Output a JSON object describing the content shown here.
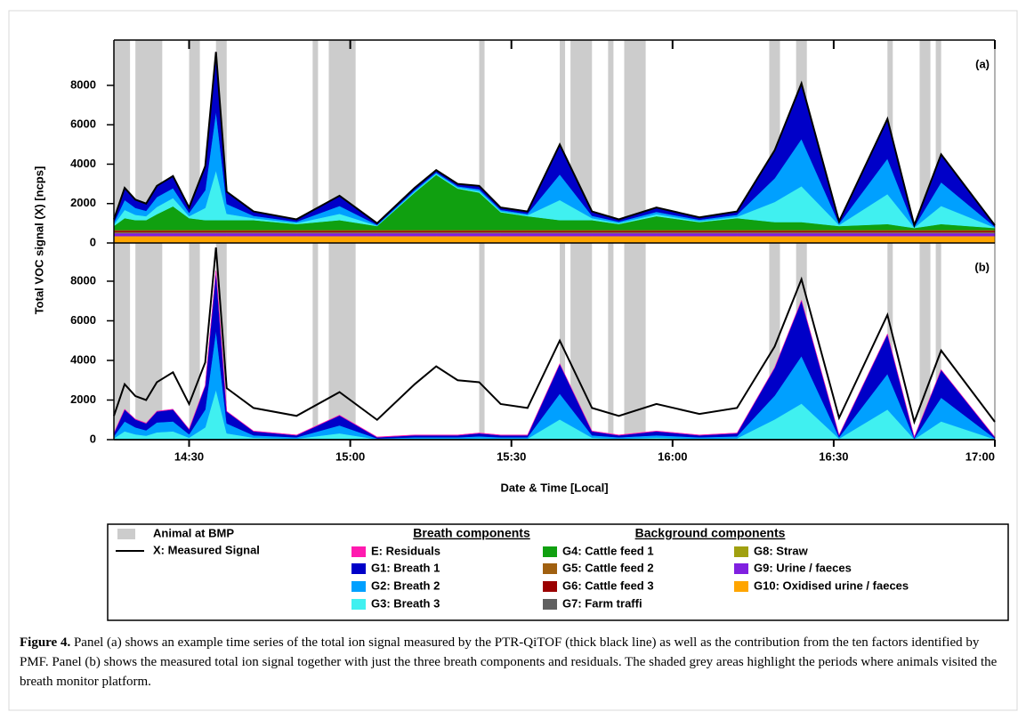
{
  "chart_data": [
    {
      "type": "stacked-area",
      "panel_label": "(a)",
      "ylabel": "Total VOC signal (X) [ncps]",
      "x": [
        "14:16",
        "14:18",
        "14:20",
        "14:22",
        "14:24",
        "14:27",
        "14:30",
        "14:33",
        "14:35",
        "14:37",
        "14:42",
        "14:50",
        "14:58",
        "15:05",
        "15:12",
        "15:16",
        "15:20",
        "15:24",
        "15:28",
        "15:33",
        "15:39",
        "15:45",
        "15:50",
        "15:57",
        "16:05",
        "16:12",
        "16:19",
        "16:24",
        "16:31",
        "16:40",
        "16:45",
        "16:50",
        "17:00"
      ],
      "xlim": [
        "14:16",
        "17:00"
      ],
      "xticks": [
        "14:30",
        "15:00",
        "15:30",
        "16:00",
        "16:30",
        "17:00"
      ],
      "ylim": [
        0,
        10300
      ],
      "yticks": [
        0,
        2000,
        4000,
        6000,
        8000
      ],
      "series": [
        {
          "name": "E: Residuals",
          "color": "#ff1aaf",
          "values": [
            20,
            20,
            20,
            20,
            20,
            20,
            20,
            20,
            20,
            20,
            20,
            20,
            20,
            20,
            20,
            20,
            20,
            20,
            20,
            20,
            20,
            20,
            20,
            20,
            20,
            20,
            20,
            20,
            20,
            20,
            20,
            20,
            20
          ]
        },
        {
          "name": "G1: Breath 1",
          "color": "#0000c8",
          "values": [
            150,
            600,
            400,
            350,
            550,
            600,
            250,
            1200,
            3000,
            600,
            200,
            100,
            500,
            60,
            100,
            100,
            100,
            150,
            100,
            100,
            1500,
            200,
            100,
            200,
            100,
            150,
            1400,
            2800,
            100,
            2000,
            60,
            1400,
            60
          ]
        },
        {
          "name": "G2: Breath 2",
          "color": "#00a0ff",
          "values": [
            100,
            500,
            350,
            270,
            500,
            500,
            170,
            900,
            3000,
            500,
            120,
            70,
            400,
            40,
            70,
            70,
            70,
            100,
            70,
            70,
            1300,
            120,
            70,
            120,
            70,
            100,
            1200,
            2400,
            70,
            1800,
            40,
            1200,
            40
          ]
        },
        {
          "name": "G3: Breath 3",
          "color": "#40f0f0",
          "values": [
            70,
            420,
            270,
            200,
            370,
            420,
            100,
            620,
            2520,
            320,
            100,
            50,
            320,
            20,
            50,
            50,
            50,
            70,
            50,
            50,
            1020,
            100,
            50,
            100,
            50,
            70,
            1020,
            1820,
            50,
            1520,
            20,
            920,
            20
          ]
        },
        {
          "name": "G4: Cattle feed 1",
          "color": "#10a010",
          "values": [
            200,
            600,
            500,
            500,
            800,
            1200,
            600,
            500,
            500,
            500,
            500,
            300,
            500,
            200,
            1900,
            2800,
            2100,
            1900,
            900,
            700,
            500,
            500,
            300,
            700,
            400,
            600,
            400,
            400,
            200,
            300,
            100,
            300,
            100
          ]
        },
        {
          "name": "G5: Cattle feed 2",
          "color": "#a06010",
          "values": [
            50,
            50,
            50,
            50,
            50,
            50,
            50,
            50,
            50,
            50,
            50,
            50,
            50,
            50,
            50,
            50,
            50,
            50,
            50,
            50,
            50,
            50,
            50,
            50,
            50,
            50,
            50,
            50,
            50,
            50,
            50,
            50,
            50
          ]
        },
        {
          "name": "G6: Cattle feed 3",
          "color": "#9b0000",
          "values": [
            50,
            50,
            50,
            50,
            50,
            50,
            50,
            50,
            50,
            50,
            50,
            50,
            50,
            50,
            50,
            50,
            50,
            50,
            50,
            50,
            50,
            50,
            50,
            50,
            50,
            50,
            50,
            50,
            50,
            50,
            50,
            50,
            50
          ]
        },
        {
          "name": "G7: Farm traffi",
          "color": "#606060",
          "values": [
            30,
            30,
            30,
            30,
            30,
            30,
            30,
            30,
            30,
            30,
            30,
            30,
            30,
            30,
            30,
            30,
            30,
            30,
            30,
            30,
            30,
            30,
            30,
            30,
            30,
            30,
            30,
            30,
            30,
            30,
            30,
            30,
            30
          ]
        },
        {
          "name": "G8: Straw",
          "color": "#a0a010",
          "values": [
            30,
            30,
            30,
            30,
            30,
            30,
            30,
            30,
            30,
            30,
            30,
            30,
            30,
            30,
            30,
            30,
            30,
            30,
            30,
            30,
            30,
            30,
            30,
            30,
            30,
            30,
            30,
            30,
            30,
            30,
            30,
            30,
            30
          ]
        },
        {
          "name": "G9: Urine / faeces",
          "color": "#8020e0",
          "values": [
            150,
            150,
            150,
            150,
            150,
            150,
            150,
            150,
            150,
            150,
            150,
            150,
            150,
            150,
            150,
            150,
            150,
            150,
            150,
            150,
            150,
            150,
            150,
            150,
            150,
            150,
            150,
            150,
            150,
            150,
            150,
            150,
            150
          ]
        },
        {
          "name": "G10: Oxidised urine / faeces",
          "color": "#ffa500",
          "values": [
            350,
            350,
            350,
            350,
            350,
            350,
            350,
            350,
            350,
            350,
            350,
            350,
            350,
            350,
            350,
            350,
            350,
            350,
            350,
            350,
            350,
            350,
            350,
            350,
            350,
            350,
            350,
            350,
            350,
            350,
            350,
            350,
            350
          ]
        },
        {
          "name": "X: Measured Signal",
          "color": "#000000",
          "type": "line",
          "values": [
            1200,
            2800,
            2200,
            2000,
            2900,
            3400,
            1800,
            3900,
            9700,
            2600,
            1600,
            1200,
            2400,
            1000,
            2800,
            3700,
            3000,
            2900,
            1800,
            1600,
            5000,
            1600,
            1200,
            1800,
            1300,
            1600,
            4700,
            8100,
            1100,
            6300,
            900,
            4500,
            900
          ]
        }
      ]
    },
    {
      "type": "stacked-area",
      "panel_label": "(b)",
      "xlabel": "Date & Time [Local]",
      "x": [
        "14:16",
        "14:18",
        "14:20",
        "14:22",
        "14:24",
        "14:27",
        "14:30",
        "14:33",
        "14:35",
        "14:37",
        "14:42",
        "14:50",
        "14:58",
        "15:05",
        "15:12",
        "15:16",
        "15:20",
        "15:24",
        "15:28",
        "15:33",
        "15:39",
        "15:45",
        "15:50",
        "15:57",
        "16:05",
        "16:12",
        "16:19",
        "16:24",
        "16:31",
        "16:40",
        "16:45",
        "16:50",
        "17:00"
      ],
      "xlim": [
        "14:16",
        "17:00"
      ],
      "xticks": [
        "14:30",
        "15:00",
        "15:30",
        "16:00",
        "16:30",
        "17:00"
      ],
      "ylim": [
        0,
        9930
      ],
      "yticks": [
        0,
        2000,
        4000,
        6000,
        8000
      ],
      "series": [
        {
          "name": "E: Residuals",
          "color": "#ff1aaf",
          "values": [
            20,
            20,
            20,
            20,
            20,
            20,
            20,
            20,
            20,
            20,
            20,
            20,
            20,
            20,
            20,
            20,
            20,
            20,
            20,
            20,
            20,
            20,
            20,
            20,
            20,
            20,
            20,
            20,
            20,
            20,
            20,
            20,
            20
          ]
        },
        {
          "name": "G1: Breath 1",
          "color": "#0000c8",
          "values": [
            150,
            600,
            400,
            350,
            550,
            600,
            250,
            1200,
            3000,
            600,
            200,
            100,
            500,
            60,
            100,
            100,
            100,
            150,
            100,
            100,
            1500,
            200,
            100,
            200,
            100,
            150,
            1400,
            2800,
            100,
            2000,
            60,
            1400,
            60
          ]
        },
        {
          "name": "G2: Breath 2",
          "color": "#00a0ff",
          "values": [
            100,
            500,
            350,
            270,
            500,
            500,
            170,
            900,
            3000,
            500,
            120,
            70,
            400,
            40,
            70,
            70,
            70,
            100,
            70,
            70,
            1300,
            120,
            70,
            120,
            70,
            100,
            1200,
            2400,
            70,
            1800,
            40,
            1200,
            40
          ]
        },
        {
          "name": "G3: Breath 3",
          "color": "#40f0f0",
          "values": [
            70,
            420,
            270,
            200,
            370,
            420,
            100,
            620,
            2520,
            320,
            100,
            50,
            320,
            20,
            50,
            50,
            50,
            70,
            50,
            50,
            1020,
            100,
            50,
            100,
            50,
            70,
            1020,
            1820,
            50,
            1520,
            20,
            920,
            20
          ]
        },
        {
          "name": "X: Measured Signal",
          "color": "#000000",
          "type": "line",
          "values": [
            1200,
            2800,
            2200,
            2000,
            2900,
            3400,
            1800,
            3900,
            9700,
            2600,
            1600,
            1200,
            2400,
            1000,
            2800,
            3700,
            3000,
            2900,
            1800,
            1600,
            5000,
            1600,
            1200,
            1800,
            1300,
            1600,
            4700,
            8100,
            1100,
            6300,
            900,
            4500,
            900
          ]
        }
      ]
    }
  ],
  "shading": {
    "label": "Animal at BMP",
    "color": "#cccccc",
    "periods": [
      [
        "14:16",
        "14:19"
      ],
      [
        "14:20",
        "14:25"
      ],
      [
        "14:30",
        "14:32"
      ],
      [
        "14:35",
        "14:37"
      ],
      [
        "14:53",
        "14:54"
      ],
      [
        "14:56",
        "15:01"
      ],
      [
        "15:24",
        "15:25"
      ],
      [
        "15:39",
        "15:40"
      ],
      [
        "15:41",
        "15:45"
      ],
      [
        "15:48",
        "15:49"
      ],
      [
        "15:51",
        "15:55"
      ],
      [
        "16:18",
        "16:20"
      ],
      [
        "16:23",
        "16:25"
      ],
      [
        "16:40",
        "16:41"
      ],
      [
        "16:46",
        "16:48"
      ],
      [
        "16:49",
        "16:50"
      ]
    ]
  },
  "legend": {
    "breath_title": "Breath components",
    "background_title": "Background components"
  },
  "caption": {
    "label": "Figure 4.",
    "text": "Panel (a) shows an example time series of the total ion signal measured by the PTR-QiTOF (thick black line) as well as the contribution from the ten factors identified by PMF. Panel (b) shows the measured total ion signal together with just the three breath components and residuals. The shaded grey areas highlight the periods where animals visited the breath monitor platform."
  }
}
